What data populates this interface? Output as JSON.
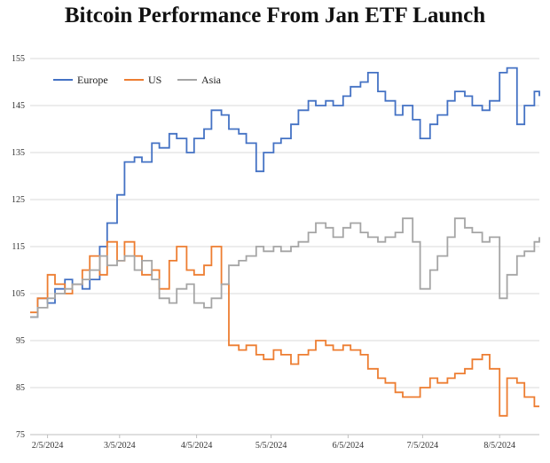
{
  "chart_data": {
    "type": "line",
    "title": "Bitcoin Performance From Jan ETF Launch",
    "xlabel": "",
    "ylabel": "",
    "x_ticks": [
      "2/5/2024",
      "3/5/2024",
      "4/5/2024",
      "5/5/2024",
      "6/5/2024",
      "7/5/2024",
      "8/5/2024"
    ],
    "x_range": [
      "2024-01-29",
      "2024-08-21"
    ],
    "y_ticks": [
      75,
      85,
      95,
      105,
      115,
      125,
      135,
      145,
      155
    ],
    "ylim": [
      75,
      155
    ],
    "grid": "horizontal",
    "legend_position": "top-left",
    "series": [
      {
        "name": "Europe",
        "color": "#4472C4",
        "points": [
          [
            "2024-01-29",
            100
          ],
          [
            "2024-02-01",
            104
          ],
          [
            "2024-02-05",
            103
          ],
          [
            "2024-02-08",
            106
          ],
          [
            "2024-02-12",
            108
          ],
          [
            "2024-02-15",
            107
          ],
          [
            "2024-02-19",
            106
          ],
          [
            "2024-02-22",
            108
          ],
          [
            "2024-02-26",
            115
          ],
          [
            "2024-02-29",
            120
          ],
          [
            "2024-03-04",
            126
          ],
          [
            "2024-03-07",
            133
          ],
          [
            "2024-03-11",
            134
          ],
          [
            "2024-03-14",
            133
          ],
          [
            "2024-03-18",
            137
          ],
          [
            "2024-03-21",
            136
          ],
          [
            "2024-03-25",
            139
          ],
          [
            "2024-03-28",
            138
          ],
          [
            "2024-04-01",
            135
          ],
          [
            "2024-04-04",
            138
          ],
          [
            "2024-04-08",
            140
          ],
          [
            "2024-04-11",
            144
          ],
          [
            "2024-04-15",
            143
          ],
          [
            "2024-04-18",
            140
          ],
          [
            "2024-04-22",
            139
          ],
          [
            "2024-04-25",
            137
          ],
          [
            "2024-04-29",
            131
          ],
          [
            "2024-05-02",
            135
          ],
          [
            "2024-05-06",
            137
          ],
          [
            "2024-05-09",
            138
          ],
          [
            "2024-05-13",
            141
          ],
          [
            "2024-05-16",
            144
          ],
          [
            "2024-05-20",
            146
          ],
          [
            "2024-05-23",
            145
          ],
          [
            "2024-05-27",
            146
          ],
          [
            "2024-05-30",
            145
          ],
          [
            "2024-06-03",
            147
          ],
          [
            "2024-06-06",
            149
          ],
          [
            "2024-06-10",
            150
          ],
          [
            "2024-06-13",
            152
          ],
          [
            "2024-06-17",
            148
          ],
          [
            "2024-06-20",
            146
          ],
          [
            "2024-06-24",
            143
          ],
          [
            "2024-06-27",
            145
          ],
          [
            "2024-07-01",
            142
          ],
          [
            "2024-07-04",
            138
          ],
          [
            "2024-07-08",
            141
          ],
          [
            "2024-07-11",
            143
          ],
          [
            "2024-07-15",
            146
          ],
          [
            "2024-07-18",
            148
          ],
          [
            "2024-07-22",
            147
          ],
          [
            "2024-07-25",
            145
          ],
          [
            "2024-07-29",
            144
          ],
          [
            "2024-08-01",
            146
          ],
          [
            "2024-08-05",
            152
          ],
          [
            "2024-08-08",
            153
          ],
          [
            "2024-08-12",
            141
          ],
          [
            "2024-08-15",
            145
          ],
          [
            "2024-08-19",
            148
          ],
          [
            "2024-08-21",
            147
          ]
        ]
      },
      {
        "name": "US",
        "color": "#ED7D31",
        "points": [
          [
            "2024-01-29",
            101
          ],
          [
            "2024-02-01",
            104
          ],
          [
            "2024-02-05",
            109
          ],
          [
            "2024-02-08",
            107
          ],
          [
            "2024-02-12",
            105
          ],
          [
            "2024-02-15",
            107
          ],
          [
            "2024-02-19",
            110
          ],
          [
            "2024-02-22",
            113
          ],
          [
            "2024-02-26",
            109
          ],
          [
            "2024-02-29",
            116
          ],
          [
            "2024-03-04",
            112
          ],
          [
            "2024-03-07",
            116
          ],
          [
            "2024-03-11",
            113
          ],
          [
            "2024-03-14",
            109
          ],
          [
            "2024-03-18",
            110
          ],
          [
            "2024-03-21",
            106
          ],
          [
            "2024-03-25",
            112
          ],
          [
            "2024-03-28",
            115
          ],
          [
            "2024-04-01",
            110
          ],
          [
            "2024-04-04",
            109
          ],
          [
            "2024-04-08",
            111
          ],
          [
            "2024-04-11",
            115
          ],
          [
            "2024-04-15",
            107
          ],
          [
            "2024-04-18",
            94
          ],
          [
            "2024-04-22",
            93
          ],
          [
            "2024-04-25",
            94
          ],
          [
            "2024-04-29",
            92
          ],
          [
            "2024-05-02",
            91
          ],
          [
            "2024-05-06",
            93
          ],
          [
            "2024-05-09",
            92
          ],
          [
            "2024-05-13",
            90
          ],
          [
            "2024-05-16",
            92
          ],
          [
            "2024-05-20",
            93
          ],
          [
            "2024-05-23",
            95
          ],
          [
            "2024-05-27",
            94
          ],
          [
            "2024-05-30",
            93
          ],
          [
            "2024-06-03",
            94
          ],
          [
            "2024-06-06",
            93
          ],
          [
            "2024-06-10",
            92
          ],
          [
            "2024-06-13",
            89
          ],
          [
            "2024-06-17",
            87
          ],
          [
            "2024-06-20",
            86
          ],
          [
            "2024-06-24",
            84
          ],
          [
            "2024-06-27",
            83
          ],
          [
            "2024-07-01",
            83
          ],
          [
            "2024-07-04",
            85
          ],
          [
            "2024-07-08",
            87
          ],
          [
            "2024-07-11",
            86
          ],
          [
            "2024-07-15",
            87
          ],
          [
            "2024-07-18",
            88
          ],
          [
            "2024-07-22",
            89
          ],
          [
            "2024-07-25",
            91
          ],
          [
            "2024-07-29",
            92
          ],
          [
            "2024-08-01",
            89
          ],
          [
            "2024-08-05",
            79
          ],
          [
            "2024-08-08",
            87
          ],
          [
            "2024-08-12",
            86
          ],
          [
            "2024-08-15",
            83
          ],
          [
            "2024-08-19",
            81
          ],
          [
            "2024-08-21",
            81
          ]
        ]
      },
      {
        "name": "Asia",
        "color": "#A5A5A5",
        "points": [
          [
            "2024-01-29",
            100
          ],
          [
            "2024-02-01",
            102
          ],
          [
            "2024-02-05",
            104
          ],
          [
            "2024-02-08",
            105
          ],
          [
            "2024-02-12",
            106
          ],
          [
            "2024-02-15",
            107
          ],
          [
            "2024-02-19",
            108
          ],
          [
            "2024-02-22",
            110
          ],
          [
            "2024-02-26",
            113
          ],
          [
            "2024-02-29",
            111
          ],
          [
            "2024-03-04",
            112
          ],
          [
            "2024-03-07",
            113
          ],
          [
            "2024-03-11",
            110
          ],
          [
            "2024-03-14",
            112
          ],
          [
            "2024-03-18",
            108
          ],
          [
            "2024-03-21",
            104
          ],
          [
            "2024-03-25",
            103
          ],
          [
            "2024-03-28",
            106
          ],
          [
            "2024-04-01",
            107
          ],
          [
            "2024-04-04",
            103
          ],
          [
            "2024-04-08",
            102
          ],
          [
            "2024-04-11",
            104
          ],
          [
            "2024-04-15",
            107
          ],
          [
            "2024-04-18",
            111
          ],
          [
            "2024-04-22",
            112
          ],
          [
            "2024-04-25",
            113
          ],
          [
            "2024-04-29",
            115
          ],
          [
            "2024-05-02",
            114
          ],
          [
            "2024-05-06",
            115
          ],
          [
            "2024-05-09",
            114
          ],
          [
            "2024-05-13",
            115
          ],
          [
            "2024-05-16",
            116
          ],
          [
            "2024-05-20",
            118
          ],
          [
            "2024-05-23",
            120
          ],
          [
            "2024-05-27",
            119
          ],
          [
            "2024-05-30",
            117
          ],
          [
            "2024-06-03",
            119
          ],
          [
            "2024-06-06",
            120
          ],
          [
            "2024-06-10",
            118
          ],
          [
            "2024-06-13",
            117
          ],
          [
            "2024-06-17",
            116
          ],
          [
            "2024-06-20",
            117
          ],
          [
            "2024-06-24",
            118
          ],
          [
            "2024-06-27",
            121
          ],
          [
            "2024-07-01",
            116
          ],
          [
            "2024-07-04",
            106
          ],
          [
            "2024-07-08",
            110
          ],
          [
            "2024-07-11",
            113
          ],
          [
            "2024-07-15",
            117
          ],
          [
            "2024-07-18",
            121
          ],
          [
            "2024-07-22",
            119
          ],
          [
            "2024-07-25",
            118
          ],
          [
            "2024-07-29",
            116
          ],
          [
            "2024-08-01",
            117
          ],
          [
            "2024-08-05",
            104
          ],
          [
            "2024-08-08",
            109
          ],
          [
            "2024-08-12",
            113
          ],
          [
            "2024-08-15",
            114
          ],
          [
            "2024-08-19",
            116
          ],
          [
            "2024-08-21",
            117
          ]
        ]
      }
    ]
  }
}
